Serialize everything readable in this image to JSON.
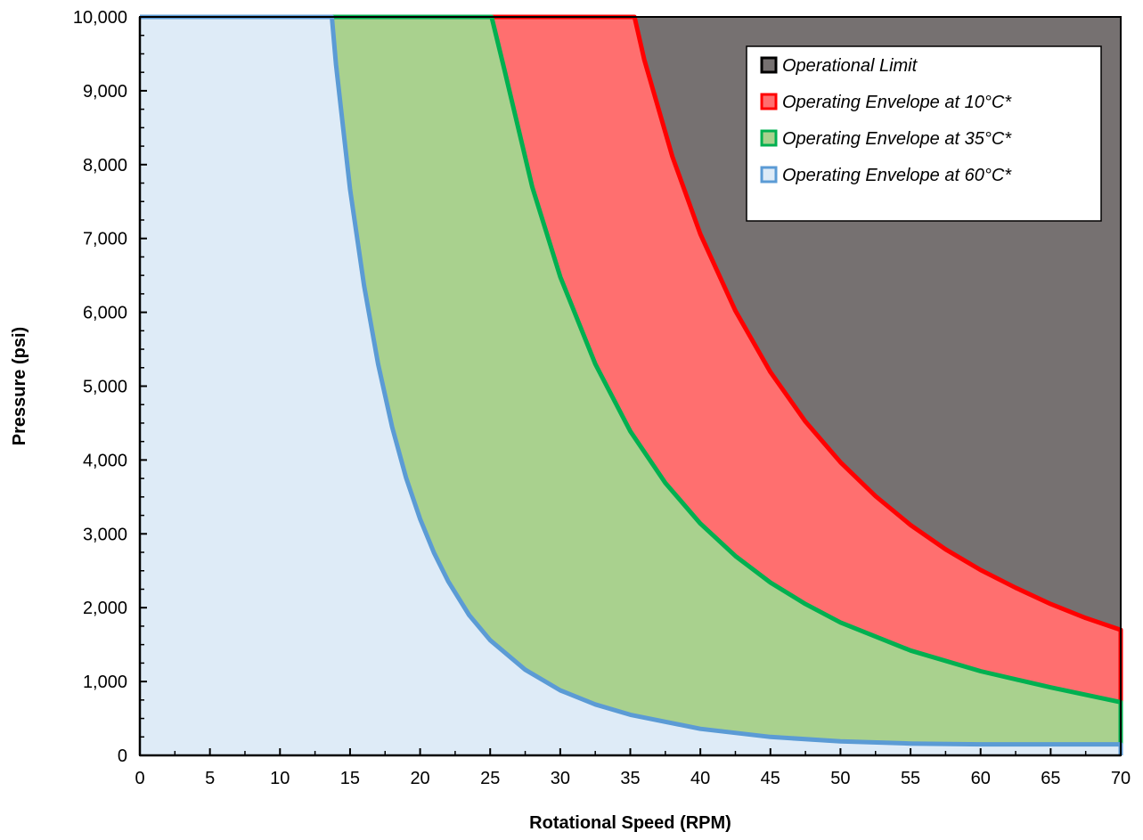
{
  "chart_data": {
    "type": "area",
    "xlabel": "Rotational Speed (RPM)",
    "ylabel": "Pressure (psi)",
    "xlim": [
      0,
      70
    ],
    "ylim": [
      0,
      10000
    ],
    "x_ticks": [
      0,
      5,
      10,
      15,
      20,
      25,
      30,
      35,
      40,
      45,
      50,
      55,
      60,
      65,
      70
    ],
    "x_tick_labels": [
      "0",
      "5",
      "10",
      "15",
      "20",
      "25",
      "30",
      "35",
      "40",
      "45",
      "50",
      "55",
      "60",
      "65",
      "70"
    ],
    "y_ticks": [
      0,
      1000,
      2000,
      3000,
      4000,
      5000,
      6000,
      7000,
      8000,
      9000,
      10000
    ],
    "y_tick_labels": [
      "0",
      "1,000",
      "2,000",
      "3,000",
      "4,000",
      "5,000",
      "6,000",
      "7,000",
      "8,000",
      "9,000",
      "10,000"
    ],
    "grid": false,
    "legend_position": "top-right",
    "series": [
      {
        "name": "Operational Limit",
        "fill": "#767171",
        "line": "#000000",
        "x": [
          0,
          70
        ],
        "y": [
          10000,
          10000
        ]
      },
      {
        "name": "Operating Envelope at 10°C*",
        "fill": "#ff6f6f",
        "line": "#ff0000",
        "x": [
          0,
          35.3,
          36,
          38,
          40,
          42.5,
          45,
          47.5,
          50,
          52.5,
          55,
          57.5,
          60,
          62.5,
          65,
          67.5,
          70
        ],
        "y": [
          10000,
          10000,
          9420,
          8110,
          7060,
          6020,
          5190,
          4520,
          3970,
          3510,
          3120,
          2790,
          2510,
          2270,
          2050,
          1860,
          1700
        ]
      },
      {
        "name": "Operating Envelope at 35°C*",
        "fill": "#a9d18e",
        "line": "#00b050",
        "x": [
          0,
          25.1,
          26,
          28,
          30,
          32.5,
          35,
          37.5,
          40,
          42.5,
          45,
          47.5,
          50,
          55,
          60,
          65,
          70
        ],
        "y": [
          10000,
          10000,
          9300,
          7700,
          6480,
          5300,
          4390,
          3690,
          3140,
          2700,
          2340,
          2050,
          1800,
          1420,
          1140,
          920,
          720
        ]
      },
      {
        "name": "Operating Envelope at 60°C*",
        "fill": "#deebf7",
        "line": "#5b9bd5",
        "x": [
          0,
          13.7,
          14,
          15,
          16,
          17,
          18,
          19,
          20,
          21,
          22,
          23.5,
          25,
          27.5,
          30,
          32.5,
          35,
          40,
          45,
          50,
          55,
          60,
          65,
          70
        ],
        "y": [
          10000,
          10000,
          9350,
          7670,
          6360,
          5300,
          4450,
          3760,
          3200,
          2740,
          2360,
          1900,
          1560,
          1160,
          880,
          690,
          550,
          360,
          250,
          190,
          160,
          150,
          150,
          150
        ]
      }
    ]
  }
}
